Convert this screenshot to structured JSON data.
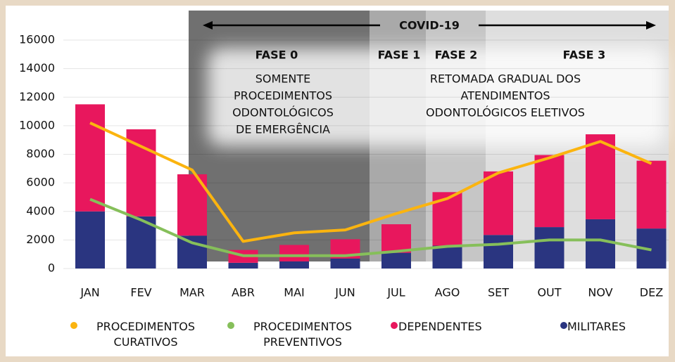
{
  "chart_data": {
    "type": "bar_line",
    "categories": [
      "JAN",
      "FEV",
      "MAR",
      "ABR",
      "MAI",
      "JUN",
      "JUL",
      "AGO",
      "SET",
      "OUT",
      "NOV",
      "DEZ"
    ],
    "ylim": [
      0,
      16000
    ],
    "yticks": [
      0,
      2000,
      4000,
      6000,
      8000,
      10000,
      12000,
      14000,
      16000
    ],
    "grid": true,
    "series": [
      {
        "name": "PROCEDIMENTOS CURATIVOS",
        "type": "line",
        "color": "#fbb40f",
        "values": [
          10200,
          8550,
          6900,
          1900,
          2500,
          2700,
          3850,
          4900,
          6700,
          7750,
          8900,
          7350
        ]
      },
      {
        "name": "PROCEDIMENTOS PREVENTIVOS",
        "type": "line",
        "color": "#86bf5a",
        "values": [
          4850,
          3400,
          1800,
          900,
          900,
          900,
          1200,
          1550,
          1700,
          2000,
          2000,
          1300
        ]
      },
      {
        "name": "DEPENDENTES",
        "type": "bar",
        "stack": 1,
        "color": "#e8175d",
        "values": [
          7500,
          6100,
          4300,
          900,
          1150,
          1350,
          2000,
          3750,
          4450,
          5050,
          5950,
          4750
        ]
      },
      {
        "name": "MILITARES",
        "type": "bar",
        "stack": 0,
        "color": "#2a3580",
        "values": [
          4000,
          3650,
          2300,
          400,
          500,
          700,
          1100,
          1600,
          2350,
          2900,
          3450,
          2800
        ]
      }
    ],
    "annotations": {
      "period": "COVID-19",
      "phases": [
        "FASE 0",
        "FASE 1",
        "FASE 2",
        "FASE 3"
      ],
      "phase0_text": [
        "SOMENTE",
        "PROCEDIMENTOS",
        "ODONTOLÓGICOS",
        "DE EMERGÊNCIA"
      ],
      "phase23_text": [
        "RETOMADA GRADUAL DOS",
        "ATENDIMENTOS",
        "ODONTOLÓGICOS ELETIVOS"
      ]
    }
  }
}
